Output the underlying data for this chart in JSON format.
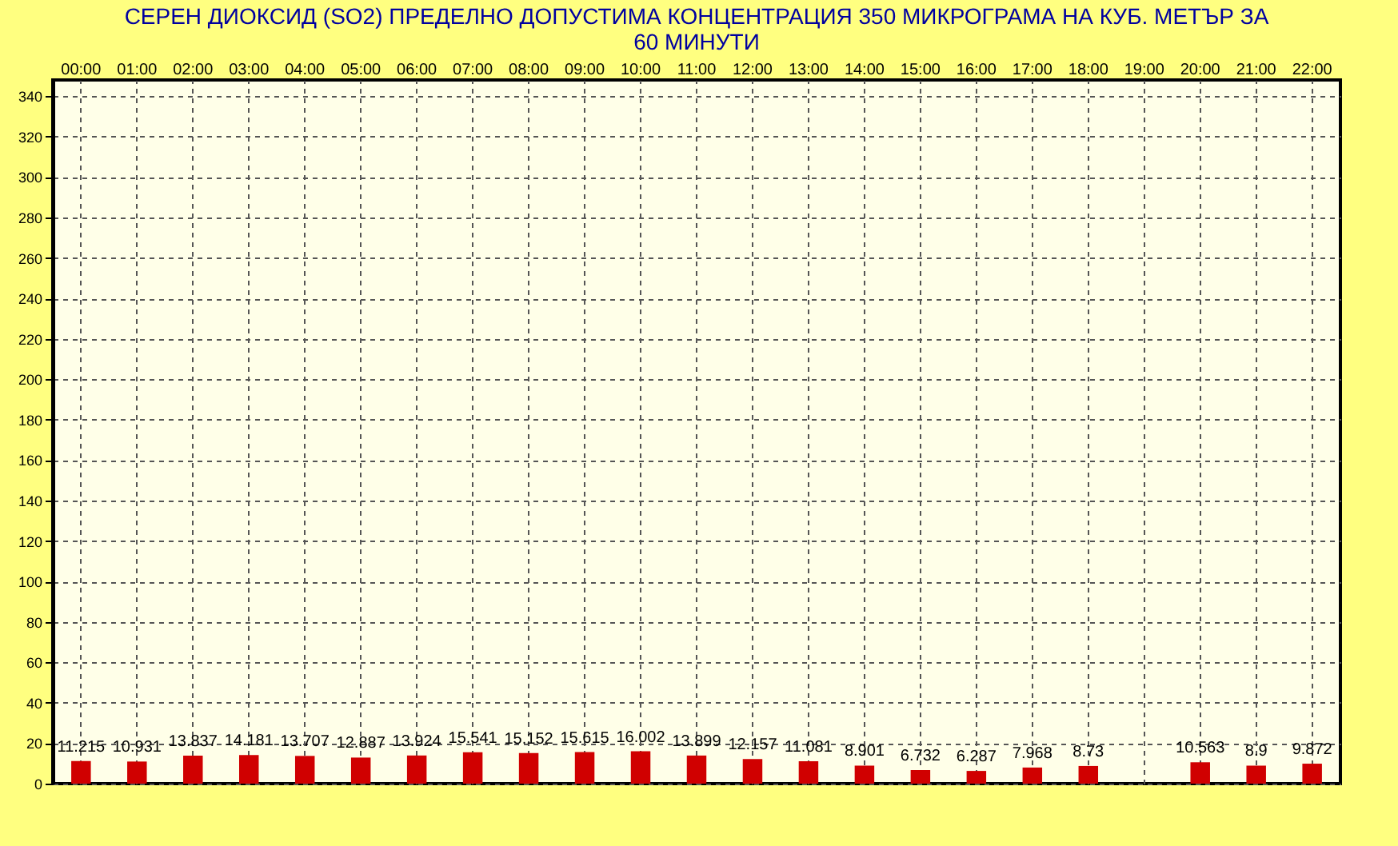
{
  "chart_data": {
    "type": "bar",
    "title": "СЕРЕН ДИОКСИД (SO2) ПРЕДЕЛНО ДОПУСТИМА КОНЦЕНТРАЦИЯ 350 МИКРОГРАМА НА КУБ. МЕТЪР ЗА 60 МИНУТИ",
    "categories": [
      "00:00",
      "01:00",
      "02:00",
      "03:00",
      "04:00",
      "05:00",
      "06:00",
      "07:00",
      "08:00",
      "09:00",
      "10:00",
      "11:00",
      "12:00",
      "13:00",
      "14:00",
      "15:00",
      "16:00",
      "17:00",
      "18:00",
      "19:00",
      "20:00",
      "21:00",
      "22:00"
    ],
    "values": [
      11.215,
      10.931,
      13.837,
      14.181,
      13.707,
      12.887,
      13.924,
      15.541,
      15.152,
      15.615,
      16.002,
      13.899,
      12.157,
      11.081,
      8.901,
      6.732,
      6.287,
      7.968,
      8.73,
      null,
      10.563,
      8.9,
      9.872
    ],
    "color": "#d00000",
    "ylim": [
      0,
      348
    ],
    "yticks": [
      0,
      20,
      40,
      60,
      80,
      100,
      120,
      140,
      160,
      180,
      200,
      220,
      240,
      260,
      280,
      300,
      320,
      340
    ],
    "grid": true,
    "data_labels": true
  }
}
